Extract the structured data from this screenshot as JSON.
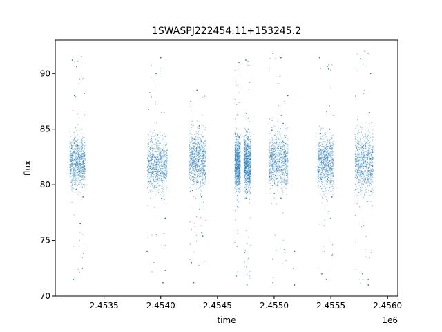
{
  "chart_data": {
    "type": "scatter",
    "title": "1SWASPJ222454.11+153245.2",
    "xlabel": "time",
    "ylabel": "flux",
    "x_offset_label": "1e6",
    "xlim": [
      2453070,
      2456090
    ],
    "ylim": [
      70.0,
      93.0
    ],
    "x_ticks": [
      2453500,
      2454000,
      2454500,
      2455000,
      2455500,
      2456000
    ],
    "x_tick_labels": [
      "2.4535",
      "2.4540",
      "2.4545",
      "2.4550",
      "2.4555",
      "2.4560"
    ],
    "y_ticks": [
      70,
      75,
      80,
      85,
      90
    ],
    "y_tick_labels": [
      "70",
      "75",
      "80",
      "85",
      "90"
    ],
    "grid": false,
    "marker_color": "#1f77b4",
    "series": [
      {
        "points": [
          [
            2453210,
            82.1
          ],
          [
            2453225,
            80.4
          ],
          [
            2453240,
            84.2
          ],
          [
            2453255,
            79.6
          ],
          [
            2453270,
            83.5
          ],
          [
            2453285,
            81.2
          ],
          [
            2453300,
            85.0
          ],
          [
            2453315,
            78.9
          ],
          [
            2453220,
            91.2
          ],
          [
            2453300,
            91.5
          ],
          [
            2453240,
            88.0
          ],
          [
            2453290,
            76.5
          ],
          [
            2453310,
            72.5
          ],
          [
            2453230,
            71.5
          ],
          [
            2453930,
            82.5
          ],
          [
            2453950,
            79.8
          ],
          [
            2453970,
            84.5
          ],
          [
            2453990,
            80.6
          ],
          [
            2454010,
            83.2
          ],
          [
            2454030,
            78.7
          ],
          [
            2453960,
            90.0
          ],
          [
            2454000,
            91.4
          ],
          [
            2454040,
            77.0
          ],
          [
            2453880,
            74.0
          ],
          [
            2454040,
            72.3
          ],
          [
            2454020,
            71.2
          ],
          [
            2454260,
            81.8
          ],
          [
            2454280,
            79.5
          ],
          [
            2454300,
            84.1
          ],
          [
            2454320,
            80.2
          ],
          [
            2454340,
            85.3
          ],
          [
            2454360,
            78.9
          ],
          [
            2454380,
            82.7
          ],
          [
            2454320,
            88.5
          ],
          [
            2454270,
            73.0
          ],
          [
            2454290,
            71.2
          ],
          [
            2454370,
            75.4
          ],
          [
            2454660,
            81.5
          ],
          [
            2454675,
            79.0
          ],
          [
            2454690,
            84.3
          ],
          [
            2454740,
            82.0
          ],
          [
            2454755,
            78.8
          ],
          [
            2454770,
            85.0
          ],
          [
            2454780,
            80.5
          ],
          [
            2454690,
            91.0
          ],
          [
            2454750,
            91.2
          ],
          [
            2454665,
            71.8
          ],
          [
            2454760,
            71.0
          ],
          [
            2454770,
            86.0
          ],
          [
            2454960,
            80.7
          ],
          [
            2454980,
            84.9
          ],
          [
            2455000,
            79.2
          ],
          [
            2455020,
            83.8
          ],
          [
            2455040,
            81.6
          ],
          [
            2455060,
            78.8
          ],
          [
            2455080,
            85.5
          ],
          [
            2455100,
            82.1
          ],
          [
            2454990,
            91.8
          ],
          [
            2455060,
            91.4
          ],
          [
            2455120,
            88.0
          ],
          [
            2454990,
            71.2
          ],
          [
            2455180,
            74.0
          ],
          [
            2455180,
            71.0
          ],
          [
            2455170,
            72.5
          ],
          [
            2455390,
            81.2
          ],
          [
            2455410,
            84.6
          ],
          [
            2455430,
            79.4
          ],
          [
            2455450,
            83.3
          ],
          [
            2455470,
            80.5
          ],
          [
            2455490,
            85.0
          ],
          [
            2455510,
            78.9
          ],
          [
            2455400,
            91.4
          ],
          [
            2455480,
            90.4
          ],
          [
            2455420,
            72.0
          ],
          [
            2455460,
            71.5
          ],
          [
            2455500,
            77.0
          ],
          [
            2455720,
            82.8
          ],
          [
            2455740,
            79.0
          ],
          [
            2455760,
            85.2
          ],
          [
            2455780,
            81.0
          ],
          [
            2455800,
            84.0
          ],
          [
            2455820,
            78.5
          ],
          [
            2455840,
            86.5
          ],
          [
            2455860,
            80.0
          ],
          [
            2455800,
            92.0
          ],
          [
            2455760,
            91.3
          ],
          [
            2455830,
            71.0
          ],
          [
            2455780,
            72.0
          ],
          [
            2455850,
            90.0
          ]
        ]
      }
    ],
    "clusters": [
      {
        "x_start": 2453195,
        "x_end": 2453330,
        "core_min": 78.8,
        "core_max": 85.3,
        "sparse_min": 71.2,
        "sparse_max": 91.6
      },
      {
        "x_start": 2453880,
        "x_end": 2454055,
        "core_min": 78.6,
        "core_max": 85.3,
        "sparse_min": 71.0,
        "sparse_max": 91.4
      },
      {
        "x_start": 2454245,
        "x_end": 2454395,
        "core_min": 78.6,
        "core_max": 86.0,
        "sparse_min": 71.0,
        "sparse_max": 88.5
      },
      {
        "x_start": 2454650,
        "x_end": 2454700,
        "core_min": 78.5,
        "core_max": 85.5,
        "sparse_min": 71.5,
        "sparse_max": 91.0
      },
      {
        "x_start": 2454730,
        "x_end": 2454790,
        "core_min": 78.4,
        "core_max": 85.7,
        "sparse_min": 71.0,
        "sparse_max": 91.2
      },
      {
        "x_start": 2454950,
        "x_end": 2455120,
        "core_min": 78.5,
        "core_max": 86.0,
        "sparse_min": 71.0,
        "sparse_max": 91.8
      },
      {
        "x_start": 2455380,
        "x_end": 2455520,
        "core_min": 78.6,
        "core_max": 85.5,
        "sparse_min": 71.2,
        "sparse_max": 91.4
      },
      {
        "x_start": 2455710,
        "x_end": 2455870,
        "core_min": 78.2,
        "core_max": 86.0,
        "sparse_min": 71.0,
        "sparse_max": 92.0
      }
    ]
  }
}
